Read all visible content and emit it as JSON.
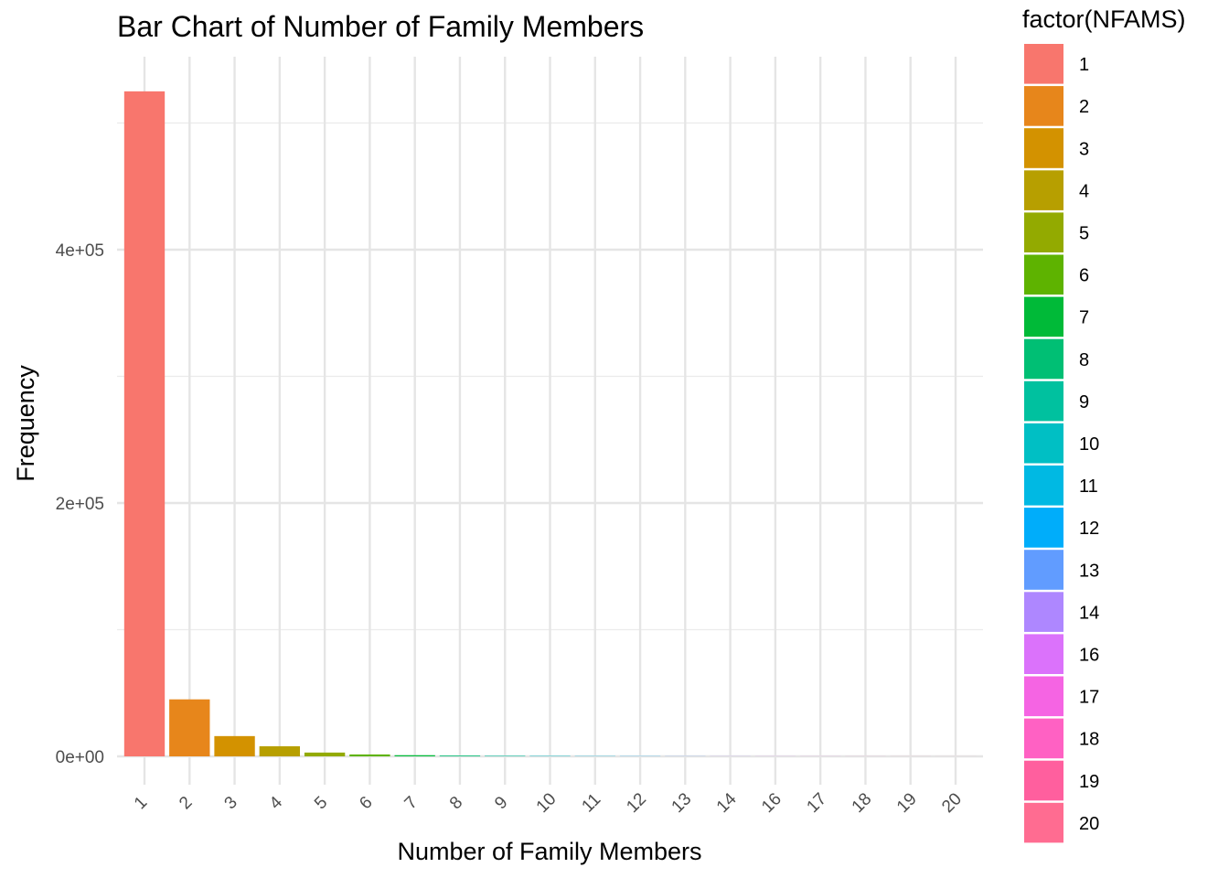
{
  "chart_data": {
    "type": "bar",
    "title": "Bar Chart of Number of Family Members",
    "xlabel": "Number of Family Members",
    "ylabel": "Frequency",
    "categories": [
      "1",
      "2",
      "3",
      "4",
      "5",
      "6",
      "7",
      "8",
      "9",
      "10",
      "11",
      "12",
      "13",
      "14",
      "16",
      "17",
      "18",
      "19",
      "20"
    ],
    "values": [
      525000,
      45000,
      16000,
      8000,
      3000,
      1500,
      900,
      600,
      400,
      300,
      200,
      150,
      120,
      100,
      80,
      60,
      50,
      40,
      30
    ],
    "ylim": [
      0,
      550000
    ],
    "yticks": [
      0,
      200000,
      400000
    ],
    "ytick_labels": [
      "0e+00",
      "2e+05",
      "4e+05"
    ],
    "minor_yticks": [
      100000,
      300000,
      500000
    ],
    "grid": true,
    "legend": {
      "title": "factor(NFAMS)",
      "position": "right",
      "labels": [
        "1",
        "2",
        "3",
        "4",
        "5",
        "6",
        "7",
        "8",
        "9",
        "10",
        "11",
        "12",
        "13",
        "14",
        "16",
        "17",
        "18",
        "19",
        "20"
      ]
    },
    "colors": [
      "#F8766D",
      "#E7861B",
      "#D39200",
      "#B79F00",
      "#93AA00",
      "#5EB300",
      "#00BA38",
      "#00BF74",
      "#00C19F",
      "#00BFC4",
      "#00B9E3",
      "#00ADFA",
      "#619CFF",
      "#AE87FF",
      "#DB72FB",
      "#F564E3",
      "#FF61C3",
      "#FF5F9E",
      "#FF6C91"
    ]
  }
}
